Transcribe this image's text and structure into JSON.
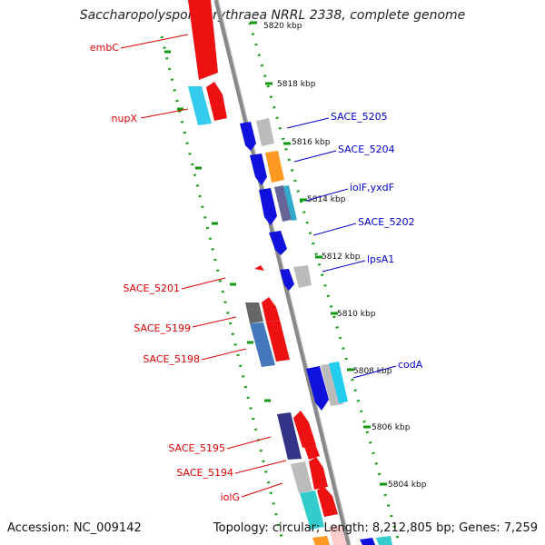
{
  "title": "Saccharopolyspora erythraea NRRL 2338, complete genome",
  "footer": {
    "accession": "Accession: NC_009142",
    "summary": "Topology: circular; Length: 8,212,805 bp; Genes: 7,259"
  },
  "colors": {
    "forward_label": "#dd0000",
    "reverse_label": "#0000cc",
    "backbone": "#888888",
    "ticks": "#119911"
  },
  "scale": {
    "unit": "kbp",
    "ticks": [
      "5820 kbp",
      "5818 kbp",
      "5816 kbp",
      "5814 kbp",
      "5812 kbp",
      "5810 kbp",
      "5808 kbp",
      "5806 kbp",
      "5804 kbp"
    ]
  },
  "forward_labels": [
    "embC",
    "nupX",
    "SACE_5201",
    "SACE_5199",
    "SACE_5198",
    "SACE_5195",
    "SACE_5194",
    "iolG"
  ],
  "reverse_labels": [
    "SACE_5205",
    "SACE_5204",
    "iolF,yxdF",
    "SACE_5202",
    "lpsA1",
    "codA"
  ]
}
